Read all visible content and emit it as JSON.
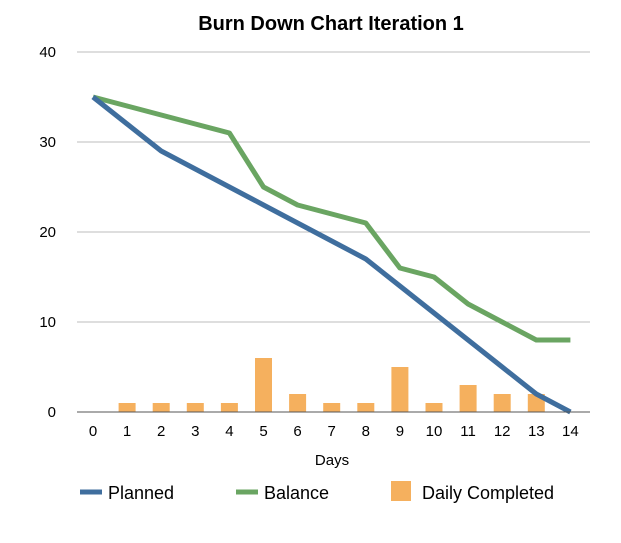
{
  "chart_data": {
    "type": "line",
    "title": "Burn Down Chart Iteration 1",
    "xlabel": "Days",
    "ylabel": "",
    "x": [
      0,
      1,
      2,
      3,
      4,
      5,
      6,
      7,
      8,
      9,
      10,
      11,
      12,
      13,
      14
    ],
    "ylim": [
      0,
      40
    ],
    "yticks": [
      0,
      10,
      20,
      30,
      40
    ],
    "grid": "horizontal",
    "legend_position": "bottom",
    "series": [
      {
        "name": "Planned",
        "type": "line",
        "color": "#3f6e9e",
        "values": [
          35,
          32,
          29,
          27,
          25,
          23,
          21,
          19,
          17,
          14,
          11,
          8,
          5,
          2,
          0
        ]
      },
      {
        "name": "Balance",
        "type": "line",
        "color": "#6aa562",
        "values": [
          35,
          34,
          33,
          32,
          31,
          25,
          23,
          22,
          21,
          16,
          15,
          12,
          10,
          8,
          8
        ]
      },
      {
        "name": "Daily Completed",
        "type": "bar",
        "color": "#f5b05e",
        "values": [
          0,
          1,
          1,
          1,
          1,
          6,
          2,
          1,
          1,
          5,
          1,
          3,
          2,
          2,
          0
        ]
      }
    ]
  }
}
